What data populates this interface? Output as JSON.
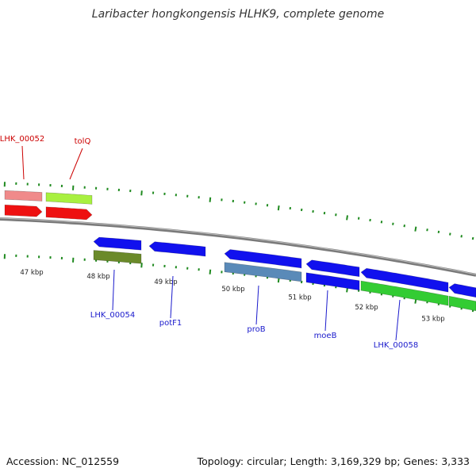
{
  "title": "Laribacter hongkongensis HLHK9, complete genome",
  "footer": {
    "accession": "Accession: NC_012559",
    "stats": "Topology: circular; Length: 3,169,329 bp; Genes: 3,333"
  },
  "colors": {
    "backbone": "#7a7a7a",
    "tick": "#1f8a1f",
    "forward_label": "#cc0000",
    "reverse_label": "#1a1acc"
  },
  "scale_labels": [
    "47 kbp",
    "48 kbp",
    "49 kbp",
    "50 kbp",
    "51 kbp",
    "52 kbp",
    "53 kbp"
  ],
  "genes": [
    {
      "name": "LHK_00052",
      "strand": "+",
      "feature_color": "#f08a8a",
      "cds_color": "#ee1111",
      "labeled": true
    },
    {
      "name": "tolQ",
      "strand": "+",
      "feature_color": "#a8f040",
      "cds_color": "#ee1111",
      "labeled": true
    },
    {
      "name": "LHK_00054",
      "strand": "-",
      "feature_color": "#6b8a2a",
      "cds_color": "#1111ee",
      "labeled": true
    },
    {
      "name": "potF1",
      "strand": "-",
      "feature_color": "",
      "cds_color": "#1111ee",
      "labeled": true
    },
    {
      "name": "proB",
      "strand": "-",
      "feature_color": "#5a8ab8",
      "cds_color": "#1111ee",
      "labeled": true
    },
    {
      "name": "moeB",
      "strand": "-",
      "feature_color": "#1111ee",
      "cds_color": "#1111ee",
      "labeled": true
    },
    {
      "name": "LHK_00058",
      "strand": "-",
      "feature_color": "#33cc33",
      "cds_color": "#1111ee",
      "labeled": true
    },
    {
      "name": "",
      "strand": "-",
      "feature_color": "#33cc33",
      "cds_color": "#1111ee",
      "labeled": false
    }
  ]
}
